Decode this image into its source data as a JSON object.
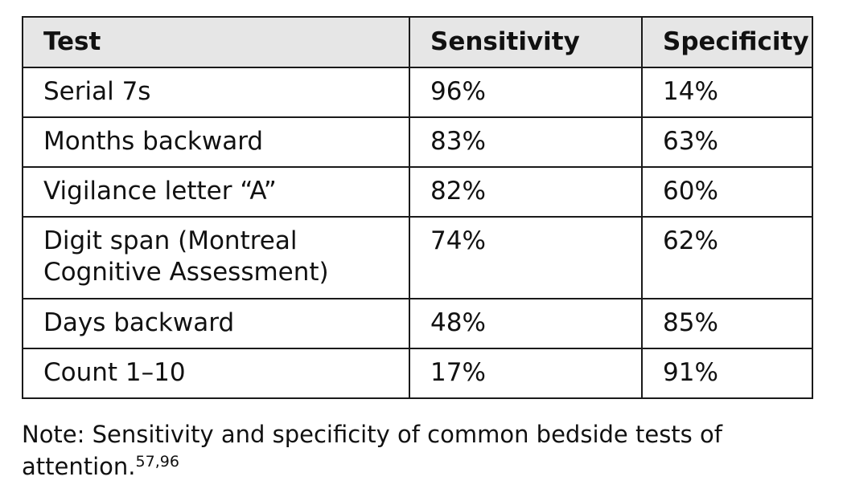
{
  "table": {
    "headers": [
      "Test",
      "Sensitivity",
      "Specificity"
    ],
    "rows": [
      {
        "test": "Serial 7s",
        "sensitivity": "96%",
        "specificity": "14%"
      },
      {
        "test": "Months backward",
        "sensitivity": "83%",
        "specificity": "63%"
      },
      {
        "test": "Vigilance letter “A”",
        "sensitivity": "82%",
        "specificity": "60%"
      },
      {
        "test_line1": "Digit span (Montreal",
        "test_line2": "Cognitive Assessment)",
        "sensitivity": "74%",
        "specificity": "62%"
      },
      {
        "test": "Days backward",
        "sensitivity": "48%",
        "specificity": "85%"
      },
      {
        "test": "Count 1–10",
        "sensitivity": "17%",
        "specificity": "91%"
      }
    ]
  },
  "note": {
    "text": "Note: Sensitivity and specificity of common bedside tests of attention.",
    "citation": "57,96"
  }
}
